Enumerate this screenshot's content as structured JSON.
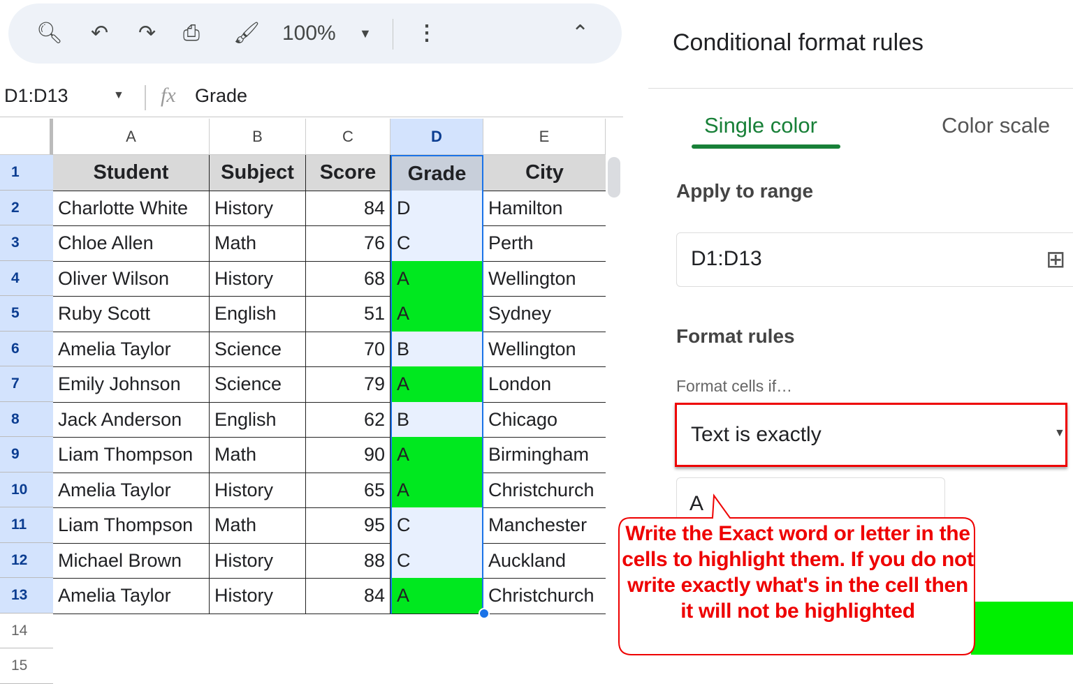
{
  "toolbar": {
    "zoom": "100%",
    "icons": [
      "search-icon",
      "undo-icon",
      "redo-icon",
      "print-icon",
      "paint-format-icon",
      "chevron-down-icon",
      "more-vert-icon",
      "chevron-up-icon"
    ]
  },
  "formula_bar": {
    "name_box": "D1:D13",
    "fx": "fx",
    "content": "Grade"
  },
  "columns": [
    "A",
    "B",
    "C",
    "D",
    "E"
  ],
  "rows": [
    [
      "Student",
      "Subject",
      "Score",
      "Grade",
      "City"
    ],
    [
      "Charlotte White",
      "History",
      "84",
      "D",
      "Hamilton"
    ],
    [
      "Chloe Allen",
      "Math",
      "76",
      "C",
      "Perth"
    ],
    [
      "Oliver Wilson",
      "History",
      "68",
      "A",
      "Wellington"
    ],
    [
      "Ruby Scott",
      "English",
      "51",
      "A",
      "Sydney"
    ],
    [
      "Amelia Taylor",
      "Science",
      "70",
      "B",
      "Wellington"
    ],
    [
      "Emily Johnson",
      "Science",
      "79",
      "A",
      "London"
    ],
    [
      "Jack Anderson",
      "English",
      "62",
      "B",
      "Chicago"
    ],
    [
      "Liam Thompson",
      "Math",
      "90",
      "A",
      "Birmingham"
    ],
    [
      "Amelia Taylor",
      "History",
      "65",
      "A",
      "Christchurch"
    ],
    [
      "Liam Thompson",
      "Math",
      "95",
      "C",
      "Manchester"
    ],
    [
      "Michael Brown",
      "History",
      "88",
      "C",
      "Auckland"
    ],
    [
      "Amelia Taylor",
      "History",
      "84",
      "A",
      "Christchurch"
    ]
  ],
  "row_numbers": [
    "1",
    "2",
    "3",
    "4",
    "5",
    "6",
    "7",
    "8",
    "9",
    "10",
    "11",
    "12",
    "13",
    "14",
    "15"
  ],
  "colors": {
    "highlight": "#00e81f",
    "selection": "#e8f0fe",
    "header_fill": "#d9d9d9",
    "accent": "#188038",
    "annotation": "#ee0000"
  },
  "panel": {
    "title": "Conditional format rules",
    "tabs": [
      "Single color",
      "Color scale"
    ],
    "apply_label": "Apply to range",
    "range": "D1:D13",
    "format_rules": "Format rules",
    "format_cells_if": "Format cells if…",
    "condition": "Text is exactly",
    "value": "A"
  },
  "annotation": "Write the Exact word or letter in the cells to highlight them. If you do not write exactly what's in the cell then it will not be highlighted"
}
